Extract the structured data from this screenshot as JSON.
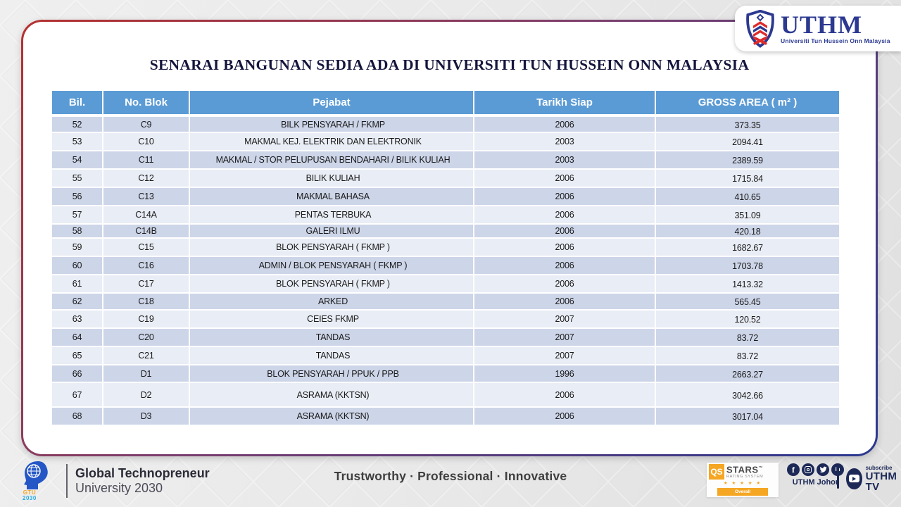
{
  "logo": {
    "acronym": "UTHM",
    "tagline": "Universiti Tun Hussein Onn Malaysia"
  },
  "title": "SENARAI BANGUNAN SEDIA ADA DI UNIVERSITI TUN HUSSEIN ONN MALAYSIA",
  "table": {
    "columns": [
      "Bil.",
      "No. Blok",
      "Pejabat",
      "Tarikh Siap",
      "GROSS AREA ( m² )"
    ],
    "rows": [
      {
        "bil": "52",
        "blok": "C9",
        "pejabat": "BILK PENSYARAH / FKMP",
        "tarikh": "2006",
        "area": "373.35"
      },
      {
        "bil": "53",
        "blok": "C10",
        "pejabat": "MAKMAL KEJ. ELEKTRIK DAN ELEKTRONIK",
        "tarikh": "2003",
        "area": "2094.41"
      },
      {
        "bil": "54",
        "blok": "C11",
        "pejabat": "MAKMAL / STOR PELUPUSAN BENDAHARI / BILIK KULIAH",
        "tarikh": "2003",
        "area": "2389.59"
      },
      {
        "bil": "55",
        "blok": "C12",
        "pejabat": "BILIK KULIAH",
        "tarikh": "2006",
        "area": "1715.84"
      },
      {
        "bil": "56",
        "blok": "C13",
        "pejabat": "MAKMAL BAHASA",
        "tarikh": "2006",
        "area": "410.65"
      },
      {
        "bil": "57",
        "blok": "C14A",
        "pejabat": "PENTAS TERBUKA",
        "tarikh": "2006",
        "area": "351.09"
      },
      {
        "bil": "58",
        "blok": "C14B",
        "pejabat": "GALERI ILMU",
        "tarikh": "2006",
        "area": "420.18"
      },
      {
        "bil": "59",
        "blok": "C15",
        "pejabat": "BLOK PENSYARAH ( FKMP )",
        "tarikh": "2006",
        "area": "1682.67"
      },
      {
        "bil": "60",
        "blok": "C16",
        "pejabat": "ADMIN / BLOK PENSYARAH ( FKMP )",
        "tarikh": "2006",
        "area": "1703.78"
      },
      {
        "bil": "61",
        "blok": "C17",
        "pejabat": "BLOK PENSYARAH ( FKMP )",
        "tarikh": "2006",
        "area": "1413.32"
      },
      {
        "bil": "62",
        "blok": "C18",
        "pejabat": "ARKED",
        "tarikh": "2006",
        "area": "565.45"
      },
      {
        "bil": "63",
        "blok": "C19",
        "pejabat": "CEIES FKMP",
        "tarikh": "2007",
        "area": "120.52"
      },
      {
        "bil": "64",
        "blok": "C20",
        "pejabat": "TANDAS",
        "tarikh": "2007",
        "area": "83.72"
      },
      {
        "bil": "65",
        "blok": "C21",
        "pejabat": "TANDAS",
        "tarikh": "2007",
        "area": "83.72"
      },
      {
        "bil": "66",
        "blok": "D1",
        "pejabat": "BLOK PENSYARAH / PPUK / PPB",
        "tarikh": "1996",
        "area": "2663.27"
      },
      {
        "bil": "67",
        "blok": "D2",
        "pejabat": "ASRAMA (KKTSN)",
        "tarikh": "2006",
        "area": "3042.66"
      },
      {
        "bil": "68",
        "blok": "D3",
        "pejabat": "ASRAMA (KKTSN)",
        "tarikh": "2006",
        "area": "3017.04"
      }
    ]
  },
  "footer": {
    "gtu": {
      "logo_word": "GTU",
      "logo_year": "2030",
      "line1": "Global Technopreneur",
      "line2": "University 2030"
    },
    "tagline": "Trustworthy · Professional · Innovative",
    "qs_badge": {
      "qs": "QS",
      "stars": "STARS",
      "trademark": "™",
      "rating_system": "RATING SYSTEM",
      "stars_row": "★ ★ ★ ★ ★",
      "overall": "Overall"
    },
    "social": {
      "caption": "UTHM Johor",
      "icons": [
        "facebook-icon",
        "instagram-icon",
        "twitter-icon",
        "linkedin-icon"
      ]
    },
    "tv": {
      "subscribe": "subscribe",
      "name": "UTHM TV"
    }
  },
  "colors": {
    "header_blue": "#5B9BD5",
    "band_dark": "#CDD5E8",
    "band_light": "#E9EDF5",
    "border_red": "#B5312F",
    "border_navy": "#2B3990",
    "brand_navy": "#2B3990",
    "footer_navy": "#1C2957",
    "accent_orange": "#F5A623",
    "title_color": "#15153D",
    "text_dark": "#1A1A1A"
  }
}
